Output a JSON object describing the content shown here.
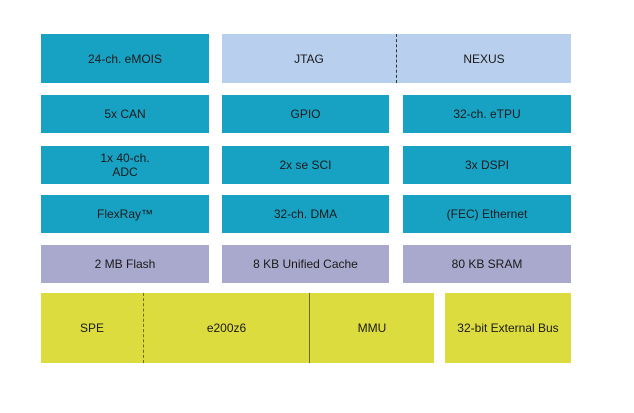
{
  "colors": {
    "peripheral": "#17a2c4",
    "debug": "#b9cfee",
    "memory": "#a9a8cd",
    "core": "#dddc3e"
  },
  "blocks": {
    "emios": "24-ch. eMOIS",
    "jtag": "JTAG",
    "nexus": "NEXUS",
    "can": "5x CAN",
    "gpio": "GPIO",
    "etpu": "32-ch. eTPU",
    "adc_line1": "1x 40-ch.",
    "adc_line2": "ADC",
    "sci": "2x se SCI",
    "dspi": "3x DSPI",
    "flexray": "FlexRay™",
    "dma": "32-ch. DMA",
    "ethernet": "(FEC) Ethernet",
    "flash": "2 MB Flash",
    "cache": "8 KB Unified Cache",
    "sram": "80 KB SRAM",
    "spe": "SPE",
    "core": "e200z6",
    "mmu": "MMU",
    "bus": "32-bit External Bus"
  }
}
